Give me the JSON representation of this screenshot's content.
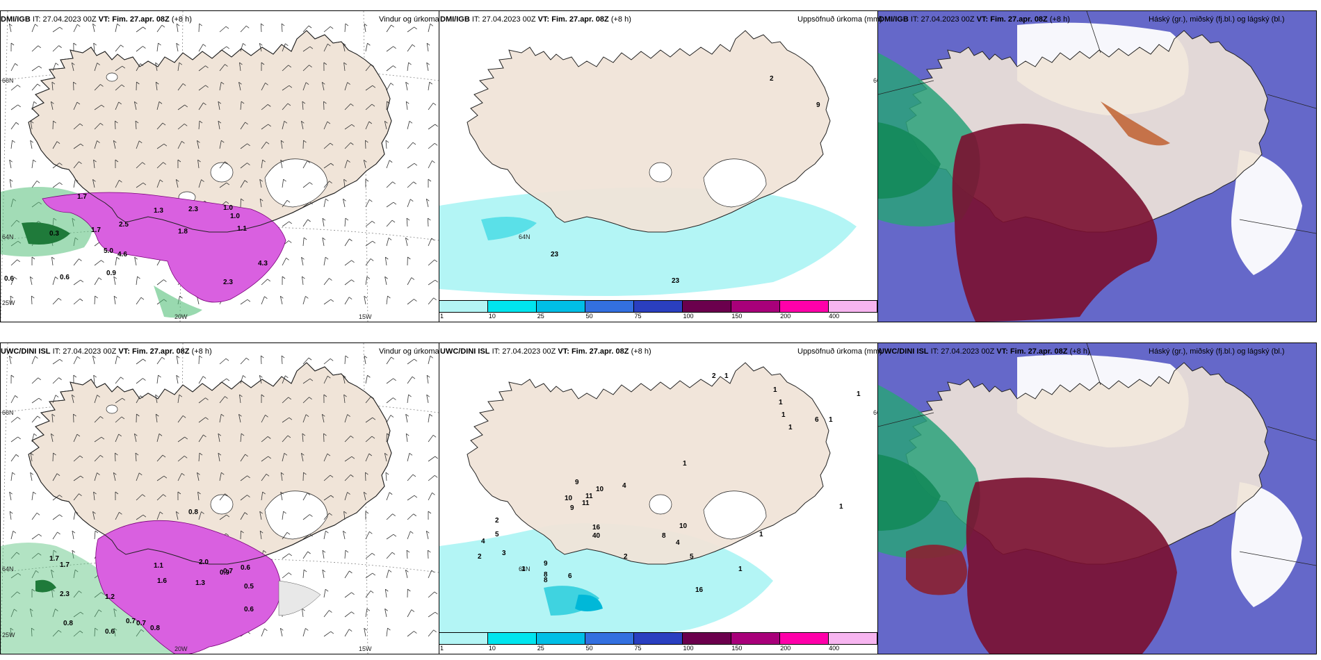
{
  "panels": [
    {
      "id": "p1",
      "model": "DMI/IGB",
      "it_label": "IT:",
      "it": "27.04.2023 00Z",
      "vt_label": "VT:",
      "vt": "Fim. 27.apr. 08Z",
      "lead": "(+8 h)",
      "field": "Vindur og úrkoma",
      "type": "wind"
    },
    {
      "id": "p2",
      "model": "DMI/IGB",
      "it_label": "IT:",
      "it": "27.04.2023 00Z",
      "vt_label": "VT:",
      "vt": "Fim. 27.apr. 08Z",
      "lead": "(+8 h)",
      "field": "Uppsöfnuð úrkoma (mm)",
      "type": "accum"
    },
    {
      "id": "p3",
      "model": "DMI/IGB",
      "it_label": "IT:",
      "it": "27.04.2023 00Z",
      "vt_label": "VT:",
      "vt": "Fim. 27.apr. 08Z",
      "lead": "(+8 h)",
      "field": "Háský (gr.), miðský (fj.bl.) og lágský (bl.)",
      "type": "cloud"
    },
    {
      "id": "p4",
      "model": "UWC/DINI ISL",
      "it_label": "IT:",
      "it": "27.04.2023 00Z",
      "vt_label": "VT:",
      "vt": "Fim. 27.apr. 08Z",
      "lead": "(+8 h)",
      "field": "Vindur og úrkoma",
      "type": "wind"
    },
    {
      "id": "p5",
      "model": "UWC/DINI ISL",
      "it_label": "IT:",
      "it": "27.04.2023 00Z",
      "vt_label": "VT:",
      "vt": "Fim. 27.apr. 08Z",
      "lead": "(+8 h)",
      "field": "Uppsöfnuð úrkoma (mm)",
      "type": "accum"
    },
    {
      "id": "p6",
      "model": "UWC/DINI ISL",
      "it_label": "IT:",
      "it": "27.04.2023 00Z",
      "vt_label": "VT:",
      "vt": "Fim. 27.apr. 08Z",
      "lead": "(+8 h)",
      "field": "Háský (gr.), miðský (fj.bl.) og lágský (bl.)",
      "type": "cloud"
    }
  ],
  "axis_labels": {
    "lat_66": "66N",
    "lat_64": "64N",
    "lon_25": "25W",
    "lon_20": "20W",
    "lon_15": "15W"
  },
  "colorbar": {
    "ticks": [
      "1",
      "10",
      "25",
      "50",
      "75",
      "100",
      "150",
      "200",
      "400"
    ],
    "colors": [
      "#b3f5f5",
      "#00e5ee",
      "#00bfe6",
      "#3370e0",
      "#2a3fc0",
      "#6b004d",
      "#a8007a",
      "#ff00aa",
      "#f7b5f0"
    ]
  },
  "precip_labels_p1": [
    "1.7",
    "1.3",
    "1.7",
    "2.5",
    "2.3",
    "1.8",
    "1.0",
    "1.0",
    "1.1",
    "0.3",
    "5.0",
    "4.6",
    "2.3",
    "4.3",
    "0.6",
    "0.6",
    "0.9"
  ],
  "precip_labels_p4": [
    "0.8",
    "1.7",
    "1.2",
    "0.7",
    "1.1",
    "2.0",
    "1.3",
    "0.9",
    "0.6",
    "0.7",
    "1.7",
    "2.3",
    "0.8",
    "0.6",
    "0.7",
    "0.8",
    "0.5",
    "0.6",
    "1.6"
  ],
  "accum_labels_p2": [
    "2",
    "9",
    "23",
    "23"
  ],
  "accum_labels_p5": [
    "2",
    "1",
    "1",
    "1",
    "1",
    "1",
    "1",
    "1",
    "6",
    "10",
    "11",
    "9",
    "9",
    "11",
    "10",
    "4",
    "16",
    "40",
    "2",
    "8",
    "4",
    "5",
    "10",
    "16",
    "1",
    "1",
    "2",
    "5",
    "4",
    "3",
    "2",
    "9",
    "8",
    "8",
    "6",
    "1",
    "1",
    "1"
  ],
  "colors": {
    "land": "#f0e4d8",
    "sea": "#ffffff",
    "precip": "#d960e0",
    "green": "#55c07a",
    "darkgreen": "#1f7a3a",
    "cyan": "#b3f5f5",
    "deepred": "#7a1030",
    "blue": "#4a4ec0",
    "lightblue": "#8fb8ff",
    "teal": "#2aa27a"
  }
}
